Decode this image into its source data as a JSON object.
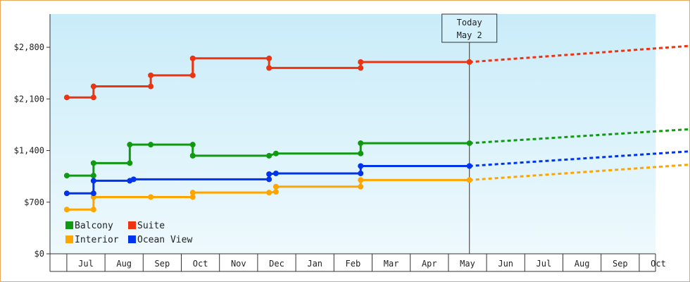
{
  "chart_data": {
    "type": "line",
    "style": "step",
    "y_ticks": [
      {
        "value": 0,
        "label": "$0"
      },
      {
        "value": 700,
        "label": "$700"
      },
      {
        "value": 1400,
        "label": "$1,400"
      },
      {
        "value": 2100,
        "label": "$2,100"
      },
      {
        "value": 2800,
        "label": "$2,800"
      }
    ],
    "ylim": [
      0,
      3250
    ],
    "x_ticks": [
      "Jul",
      "Aug",
      "Sep",
      "Oct",
      "Nov",
      "Dec",
      "Jan",
      "Feb",
      "Mar",
      "Apr",
      "May",
      "Jun",
      "Jul",
      "Aug",
      "Sep",
      "Oct"
    ],
    "x_month_range": [
      -0.5,
      15.85
    ],
    "today_marker": {
      "line1": "Today",
      "line2": "May 2",
      "x": 10.05
    },
    "grid": false,
    "legend_position": "bottom-left",
    "series": [
      {
        "name": "Balcony",
        "color": "#119911",
        "points": [
          [
            -0.5,
            1060
          ],
          [
            0.2,
            1060
          ],
          [
            0.2,
            1230
          ],
          [
            1.15,
            1230
          ],
          [
            1.15,
            1480
          ],
          [
            1.7,
            1480
          ],
          [
            2.8,
            1480
          ],
          [
            2.8,
            1330
          ],
          [
            4.8,
            1330
          ],
          [
            4.98,
            1360
          ],
          [
            7.2,
            1360
          ],
          [
            7.2,
            1500
          ],
          [
            10.05,
            1500
          ]
        ],
        "markers": [
          [
            -0.5,
            1060
          ],
          [
            0.2,
            1060
          ],
          [
            0.2,
            1230
          ],
          [
            1.15,
            1230
          ],
          [
            1.15,
            1480
          ],
          [
            1.7,
            1480
          ],
          [
            2.8,
            1480
          ],
          [
            2.8,
            1330
          ],
          [
            4.8,
            1330
          ],
          [
            4.98,
            1360
          ],
          [
            7.2,
            1360
          ],
          [
            7.2,
            1500
          ],
          [
            10.05,
            1500
          ]
        ],
        "forecast": [
          [
            10.05,
            1500
          ],
          [
            15.85,
            1690
          ]
        ]
      },
      {
        "name": "Suite",
        "color": "#ee3311",
        "points": [
          [
            -0.5,
            2120
          ],
          [
            0.2,
            2120
          ],
          [
            0.2,
            2270
          ],
          [
            1.7,
            2270
          ],
          [
            1.7,
            2420
          ],
          [
            2.8,
            2420
          ],
          [
            2.8,
            2650
          ],
          [
            4.8,
            2650
          ],
          [
            4.8,
            2520
          ],
          [
            7.2,
            2520
          ],
          [
            7.2,
            2600
          ],
          [
            10.05,
            2600
          ]
        ],
        "markers": [
          [
            -0.5,
            2120
          ],
          [
            0.2,
            2120
          ],
          [
            0.2,
            2270
          ],
          [
            1.7,
            2270
          ],
          [
            1.7,
            2420
          ],
          [
            2.8,
            2420
          ],
          [
            2.8,
            2650
          ],
          [
            4.8,
            2650
          ],
          [
            4.8,
            2520
          ],
          [
            7.2,
            2520
          ],
          [
            7.2,
            2600
          ],
          [
            10.05,
            2600
          ]
        ],
        "forecast": [
          [
            10.05,
            2600
          ],
          [
            15.85,
            2820
          ]
        ]
      },
      {
        "name": "Interior",
        "color": "#ffa500",
        "points": [
          [
            -0.5,
            600
          ],
          [
            0.2,
            600
          ],
          [
            0.2,
            770
          ],
          [
            1.7,
            770
          ],
          [
            2.8,
            770
          ],
          [
            2.8,
            830
          ],
          [
            4.8,
            830
          ],
          [
            4.98,
            840
          ],
          [
            4.98,
            910
          ],
          [
            7.2,
            910
          ],
          [
            7.2,
            1000
          ],
          [
            10.05,
            1000
          ]
        ],
        "markers": [
          [
            -0.5,
            600
          ],
          [
            0.2,
            600
          ],
          [
            0.2,
            770
          ],
          [
            1.7,
            770
          ],
          [
            2.8,
            770
          ],
          [
            2.8,
            830
          ],
          [
            4.8,
            830
          ],
          [
            4.98,
            840
          ],
          [
            4.98,
            910
          ],
          [
            7.2,
            910
          ],
          [
            7.2,
            1000
          ],
          [
            10.05,
            1000
          ]
        ],
        "forecast": [
          [
            10.05,
            1000
          ],
          [
            15.85,
            1210
          ]
        ]
      },
      {
        "name": "Ocean View",
        "color": "#0033ee",
        "points": [
          [
            -0.5,
            820
          ],
          [
            0.2,
            820
          ],
          [
            0.2,
            990
          ],
          [
            1.15,
            990
          ],
          [
            1.25,
            1010
          ],
          [
            4.8,
            1010
          ],
          [
            4.8,
            1080
          ],
          [
            4.98,
            1090
          ],
          [
            7.2,
            1090
          ],
          [
            7.2,
            1190
          ],
          [
            10.05,
            1190
          ]
        ],
        "markers": [
          [
            -0.5,
            820
          ],
          [
            0.2,
            820
          ],
          [
            0.2,
            990
          ],
          [
            1.15,
            990
          ],
          [
            1.25,
            1010
          ],
          [
            4.8,
            1010
          ],
          [
            4.8,
            1080
          ],
          [
            4.98,
            1090
          ],
          [
            7.2,
            1090
          ],
          [
            7.2,
            1190
          ],
          [
            10.05,
            1190
          ]
        ],
        "forecast": [
          [
            10.05,
            1190
          ],
          [
            15.85,
            1390
          ]
        ]
      }
    ],
    "legend": [
      {
        "label": "Balcony",
        "color": "#119911"
      },
      {
        "label": "Suite",
        "color": "#ee3311"
      },
      {
        "label": "Interior",
        "color": "#ffa500"
      },
      {
        "label": "Ocean View",
        "color": "#0033ee"
      }
    ]
  }
}
